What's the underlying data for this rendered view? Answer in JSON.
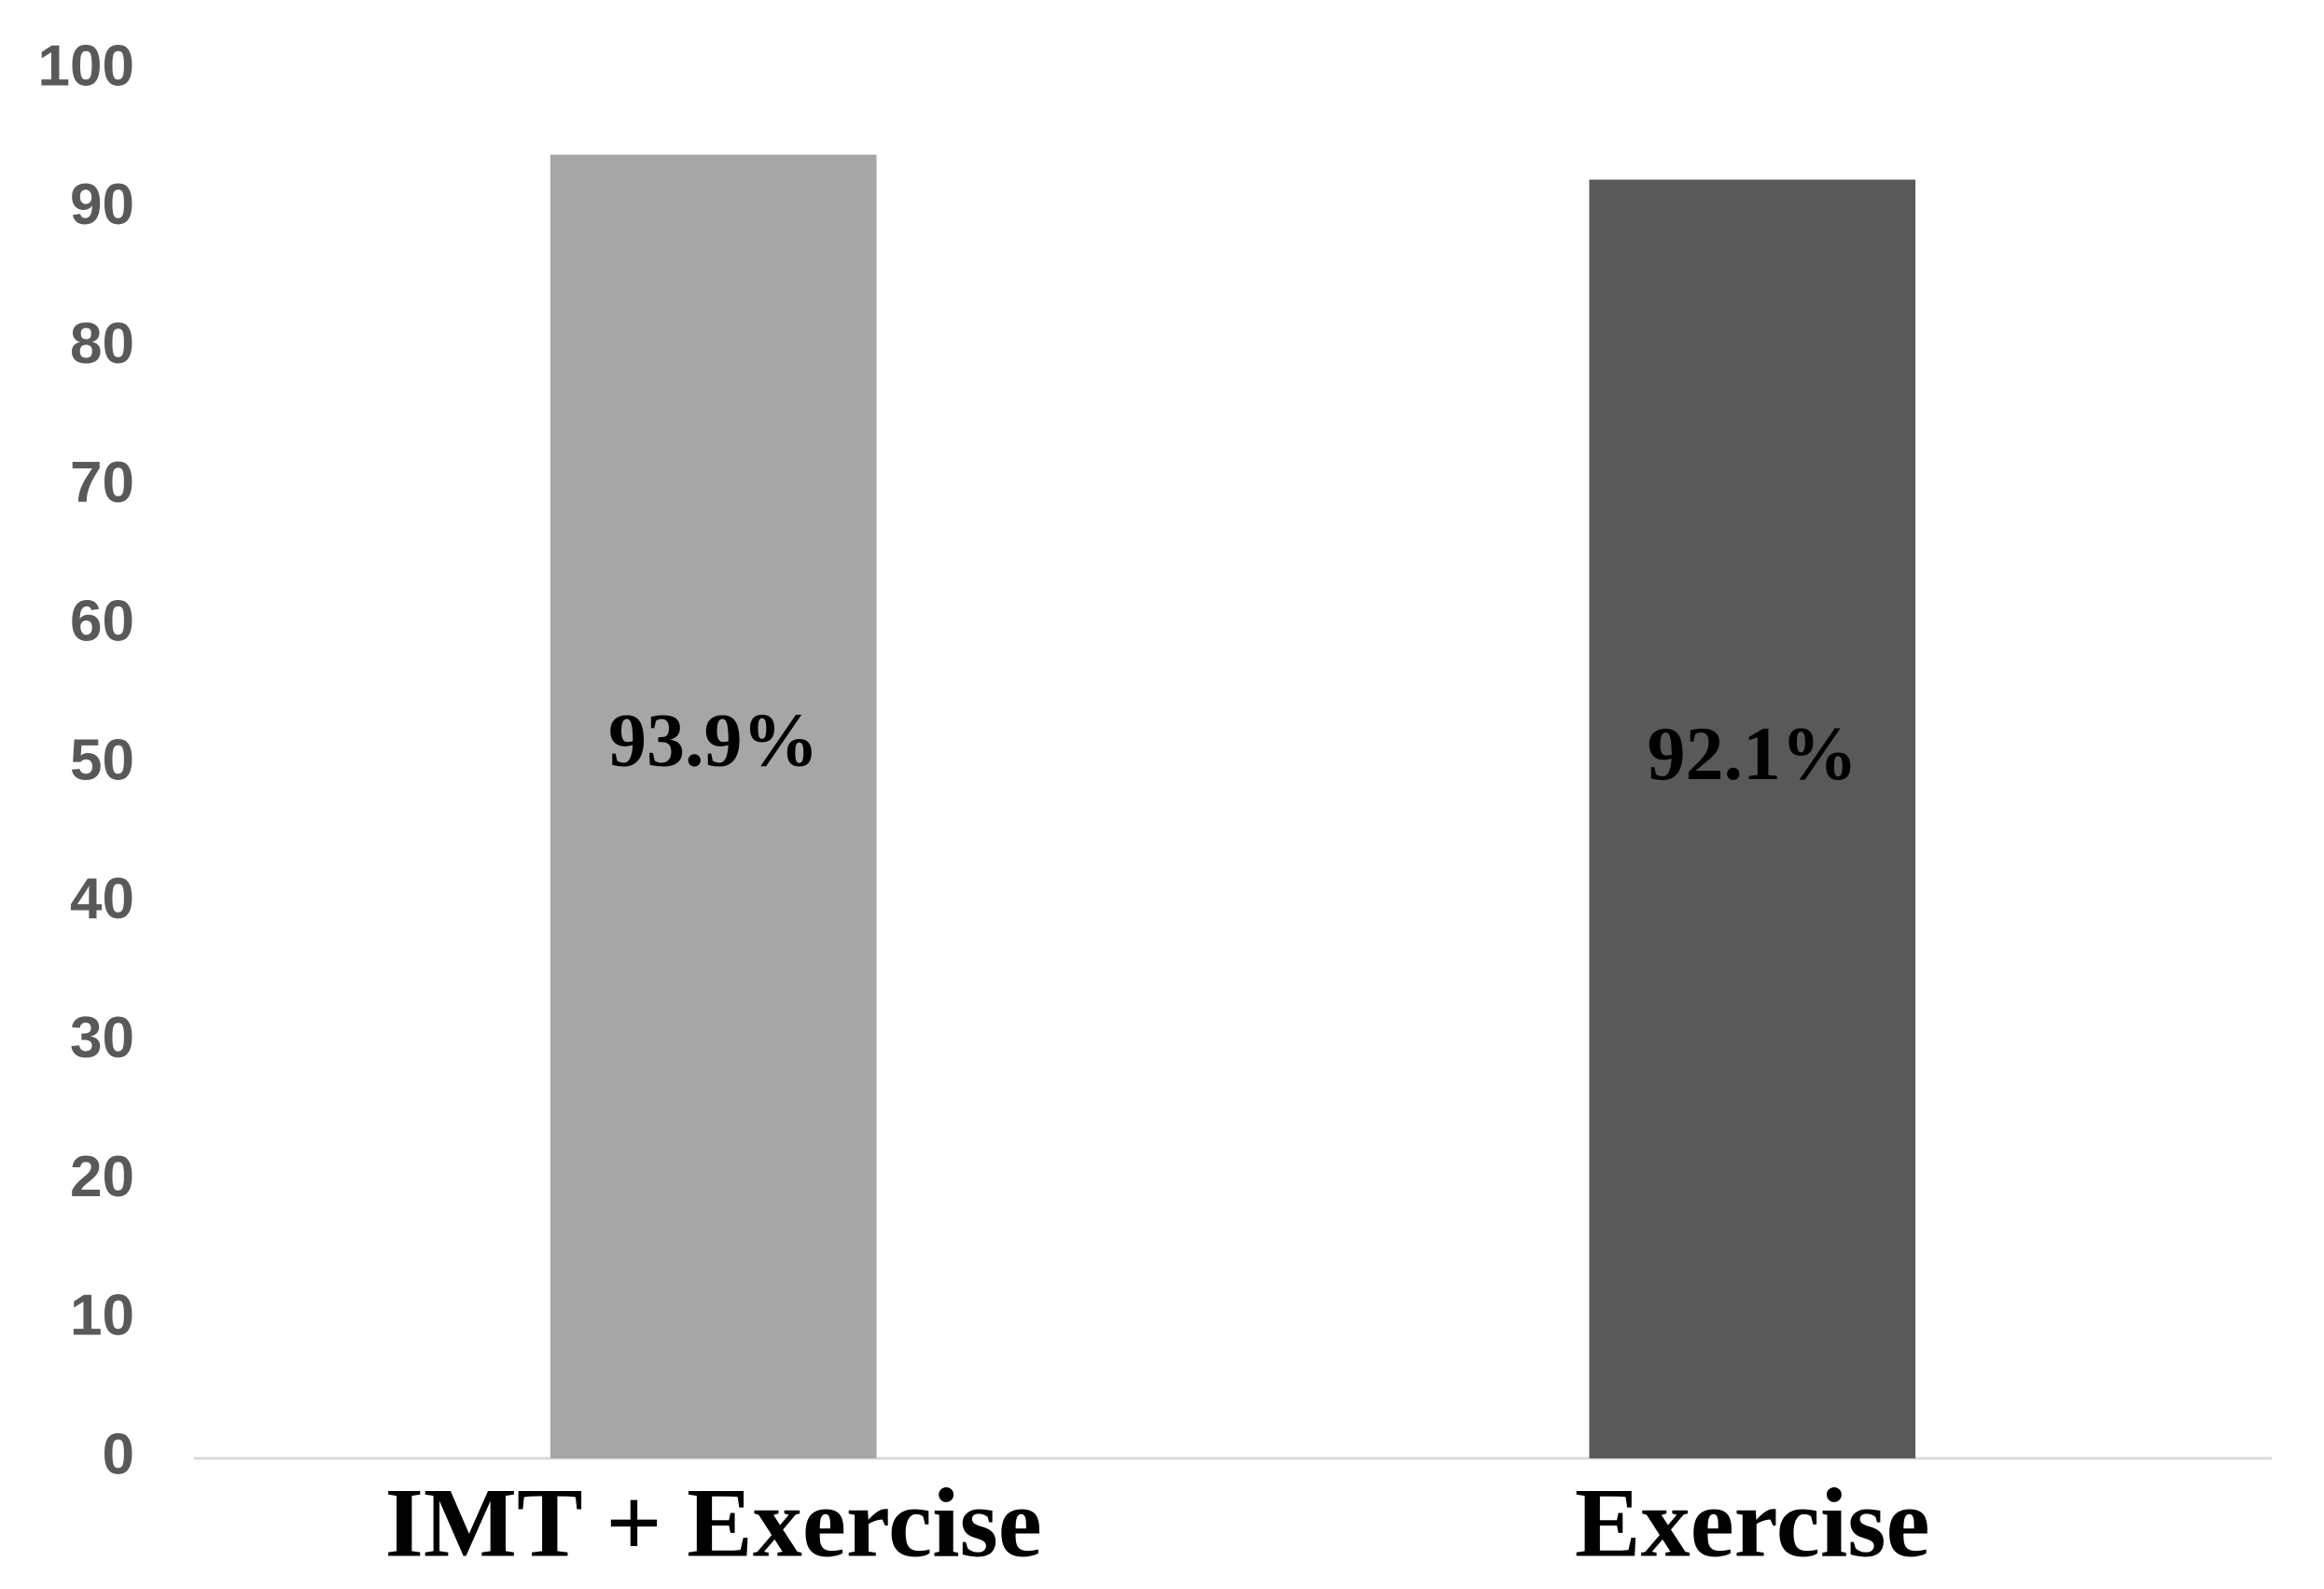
{
  "chart_data": {
    "type": "bar",
    "categories": [
      "IMT + Exercise",
      "Exercise"
    ],
    "values": [
      93.9,
      92.1
    ],
    "value_labels": [
      "93.9%",
      "92.1%"
    ],
    "colors": [
      "#a6a6a6",
      "#595959"
    ],
    "ylim": [
      0,
      100
    ],
    "yticks": [
      0,
      10,
      20,
      30,
      40,
      50,
      60,
      70,
      80,
      90,
      100
    ],
    "grid": false
  }
}
